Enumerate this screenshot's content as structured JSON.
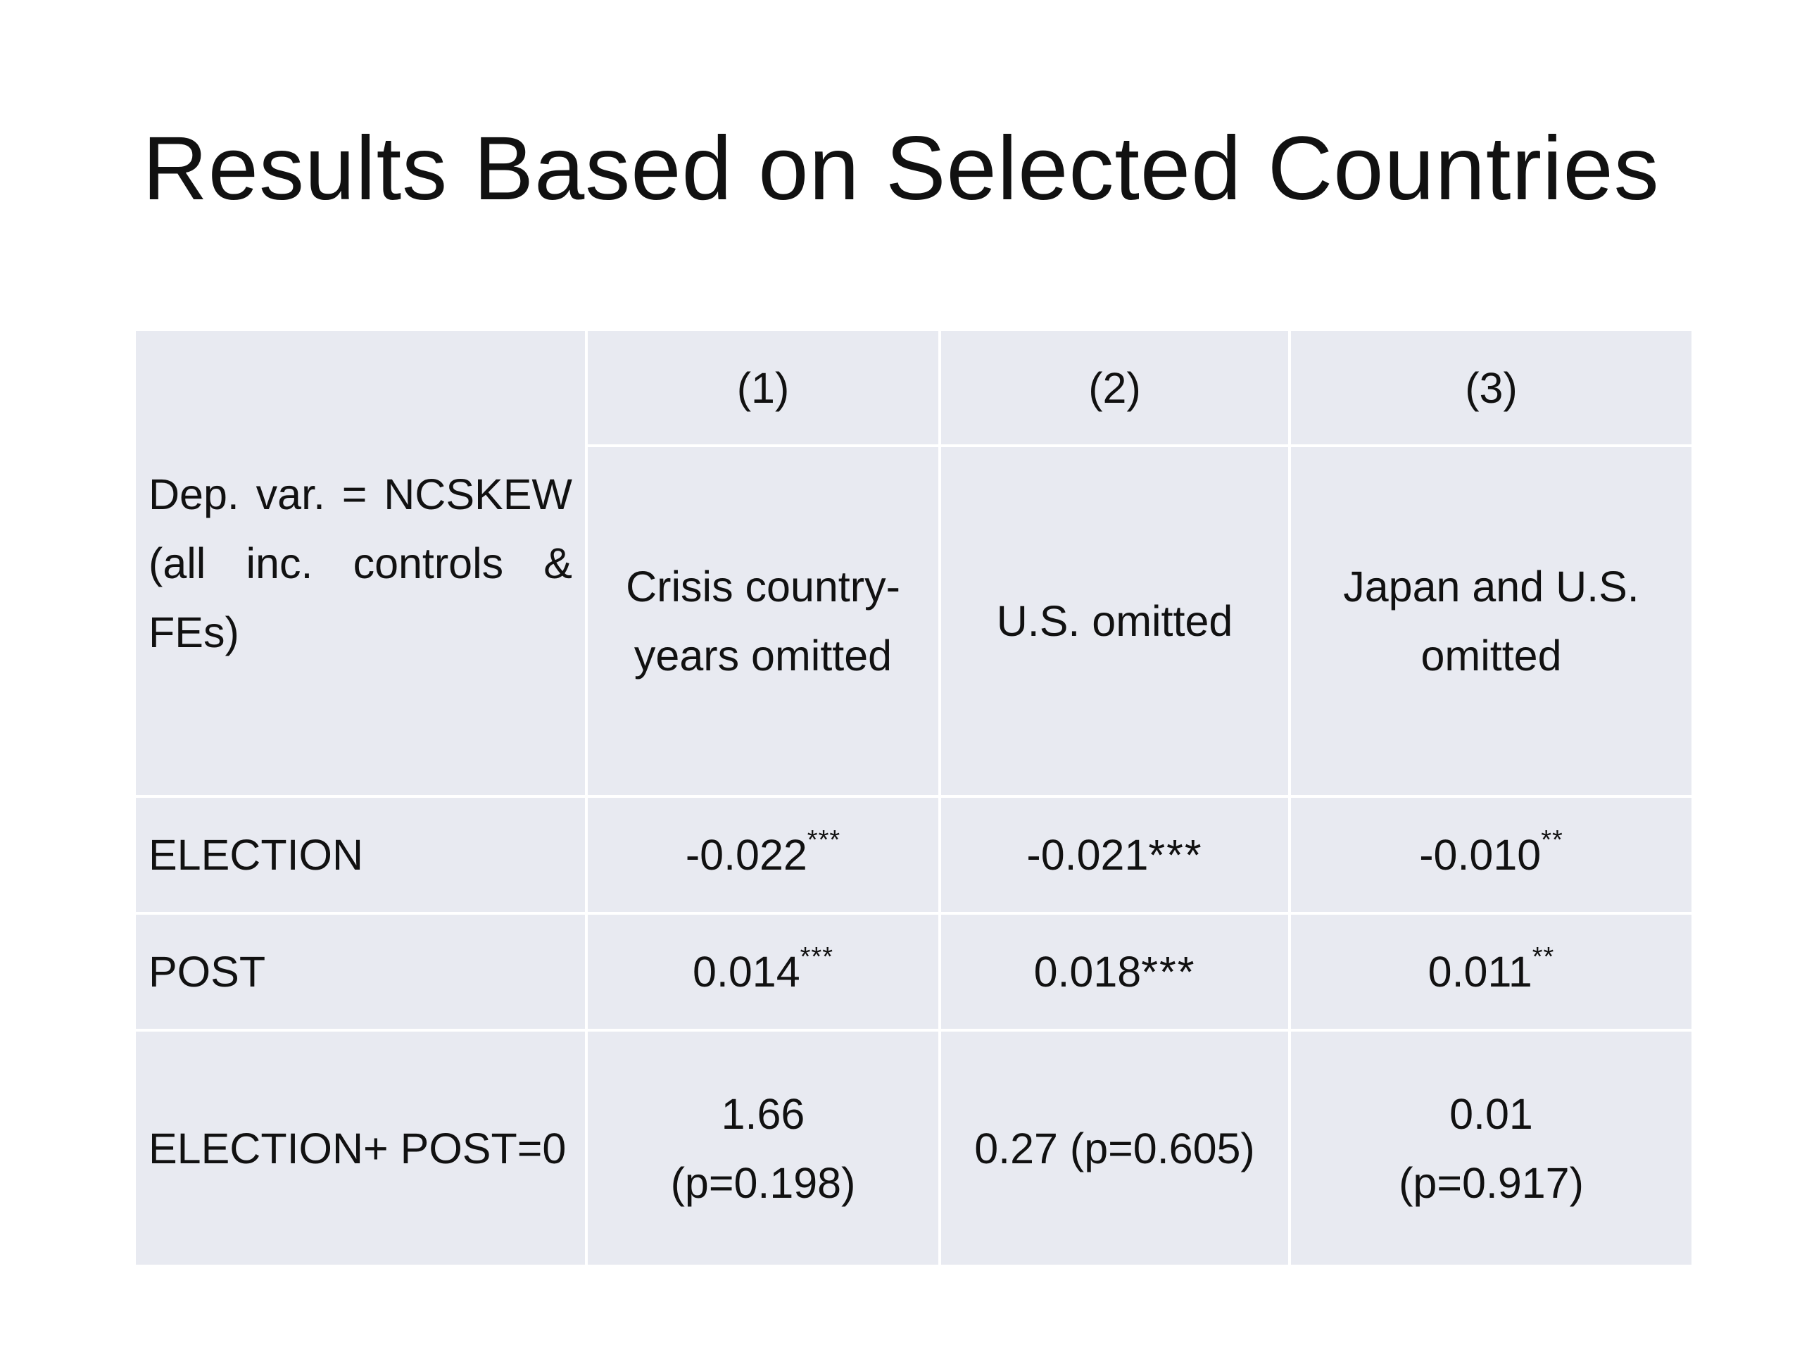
{
  "title": "Results Based on Selected Countries",
  "table": {
    "dep_var_label": "Dep. var. = NCSKEW (all inc. controls & FEs)",
    "col_numbers": [
      "(1)",
      "(2)",
      "(3)"
    ],
    "col_desc": [
      [
        "Crisis country-",
        "years omitted"
      ],
      [
        "U.S. omitted"
      ],
      [
        "Japan and U.S.",
        "omitted"
      ]
    ],
    "rows": [
      {
        "label": "ELECTION",
        "values": [
          {
            "num": "-0.022",
            "stars": "***",
            "style": "sup"
          },
          {
            "num": "-0.021",
            "stars": "***",
            "style": "inline"
          },
          {
            "num": "-0.010",
            "stars": "**",
            "style": "sup"
          }
        ]
      },
      {
        "label": "POST",
        "values": [
          {
            "num": "0.014",
            "stars": "***",
            "style": "sup"
          },
          {
            "num": "0.018",
            "stars": "***",
            "style": "inline"
          },
          {
            "num": "0.011",
            "stars": "**",
            "style": "sup"
          }
        ]
      },
      {
        "label": "ELECTION+ POST=0",
        "values": [
          {
            "line1": "1.66",
            "line2": "(p=0.198)"
          },
          {
            "line1": "0.27 (p=0.605)"
          },
          {
            "line1": "0.01",
            "line2": "(p=0.917)"
          }
        ]
      }
    ]
  },
  "colors": {
    "table_bg": "#e8eaf1",
    "grid_lines": "#ffffff",
    "text": "#111111"
  }
}
